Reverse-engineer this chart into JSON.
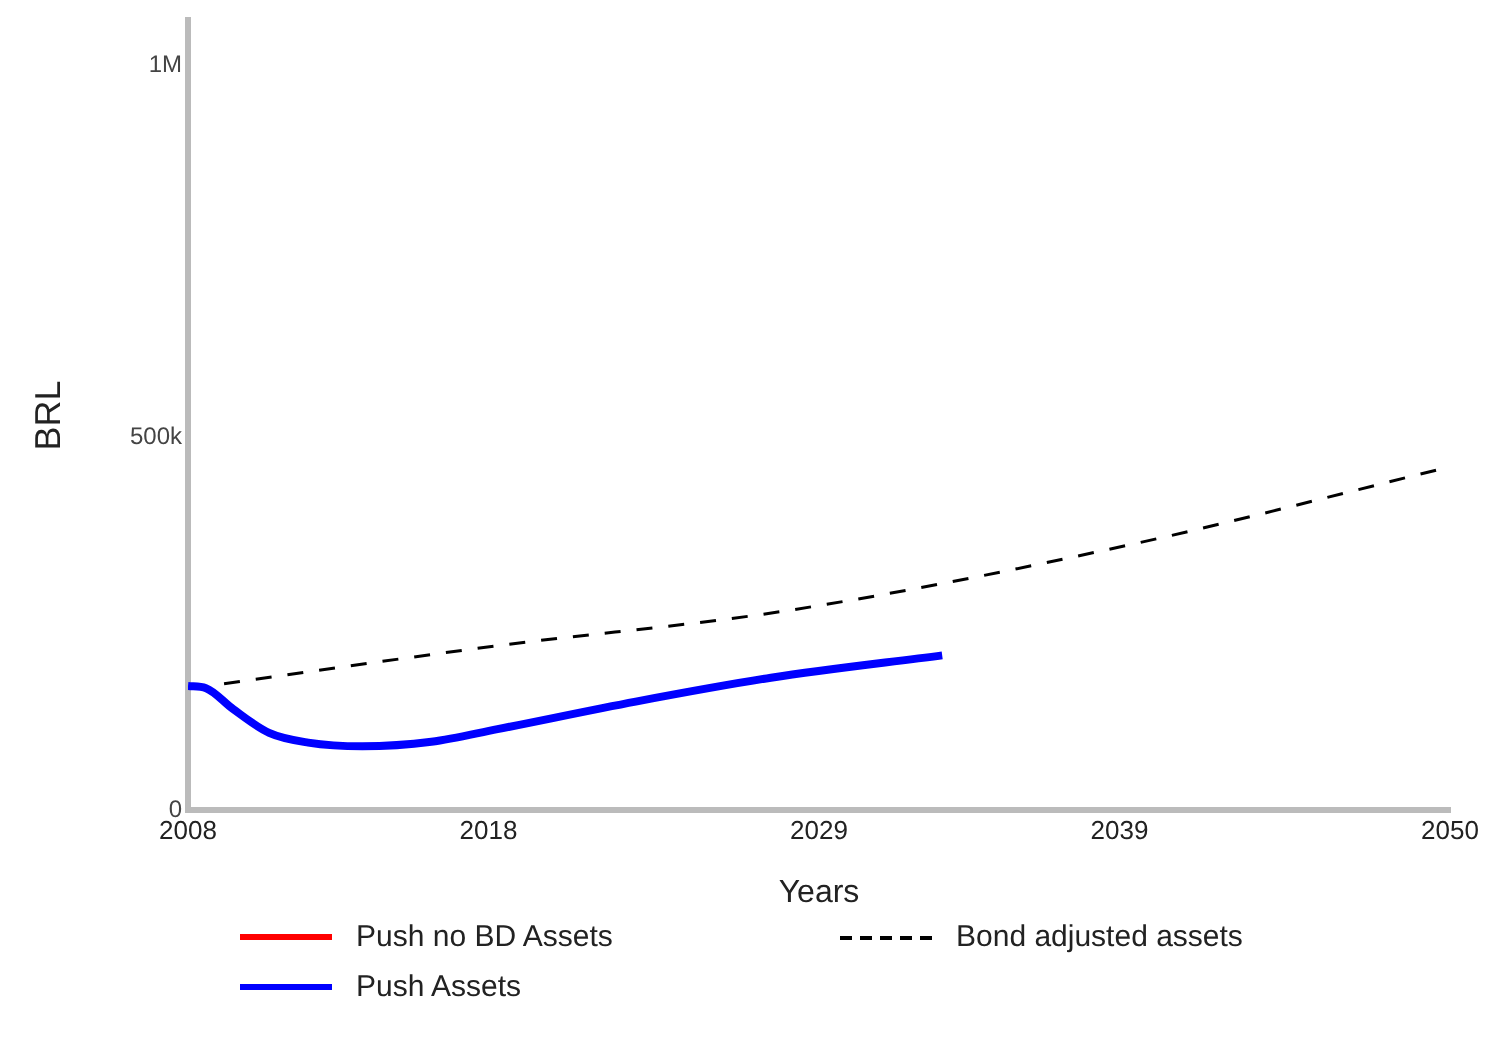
{
  "chart_data": {
    "type": "line",
    "xlabel": "Years",
    "ylabel": "BRL",
    "xlim": [
      2008,
      2050
    ],
    "xticks": [
      2008,
      2018,
      2029,
      2039,
      2050
    ],
    "ylim": [
      0,
      1060000
    ],
    "yticks": [
      0,
      {
        "value": 500000,
        "label": "500k"
      },
      {
        "value": 1000000,
        "label": "1M"
      }
    ],
    "grid": false,
    "legend": "bottom",
    "marker": "none",
    "series": [
      {
        "name": "Push no BD Assets",
        "color": "#ff0000",
        "line_style": "solid"
      },
      {
        "name": "Bond adjusted assets",
        "color": "#000000",
        "line_style": "dashed",
        "x": [
          2009.2,
          2018.3,
          2028.1,
          2039.3,
          2050
        ],
        "values": [
          170000,
          221000,
          269000,
          356000,
          461000
        ]
      },
      {
        "name": "Push Assets",
        "color": "#0000ff",
        "line_style": "solid",
        "x": [
          2008,
          2008.6,
          2009.5,
          2010.7,
          2012,
          2013.8,
          2016.1,
          2018.3,
          2022.9,
          2027.4,
          2033.1
        ],
        "values": [
          167000,
          164000,
          136000,
          104000,
          91000,
          86000,
          92000,
          109000,
          146000,
          178000,
          208000
        ]
      }
    ]
  }
}
